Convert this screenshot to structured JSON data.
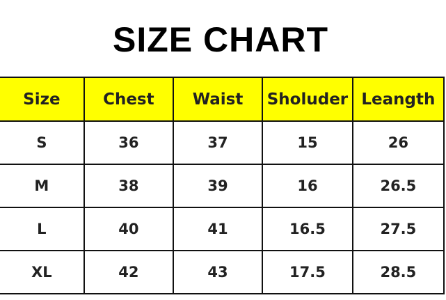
{
  "title": "SIZE CHART",
  "header_color": "#ffff00",
  "table": {
    "headers": [
      "Size",
      "Chest",
      "Waist",
      "Sholuder",
      "Leangth"
    ],
    "rows": [
      [
        "S",
        "36",
        "37",
        "15",
        "26"
      ],
      [
        "M",
        "38",
        "39",
        "16",
        "26.5"
      ],
      [
        "L",
        "40",
        "41",
        "16.5",
        "27.5"
      ],
      [
        "XL",
        "42",
        "43",
        "17.5",
        "28.5"
      ]
    ]
  }
}
